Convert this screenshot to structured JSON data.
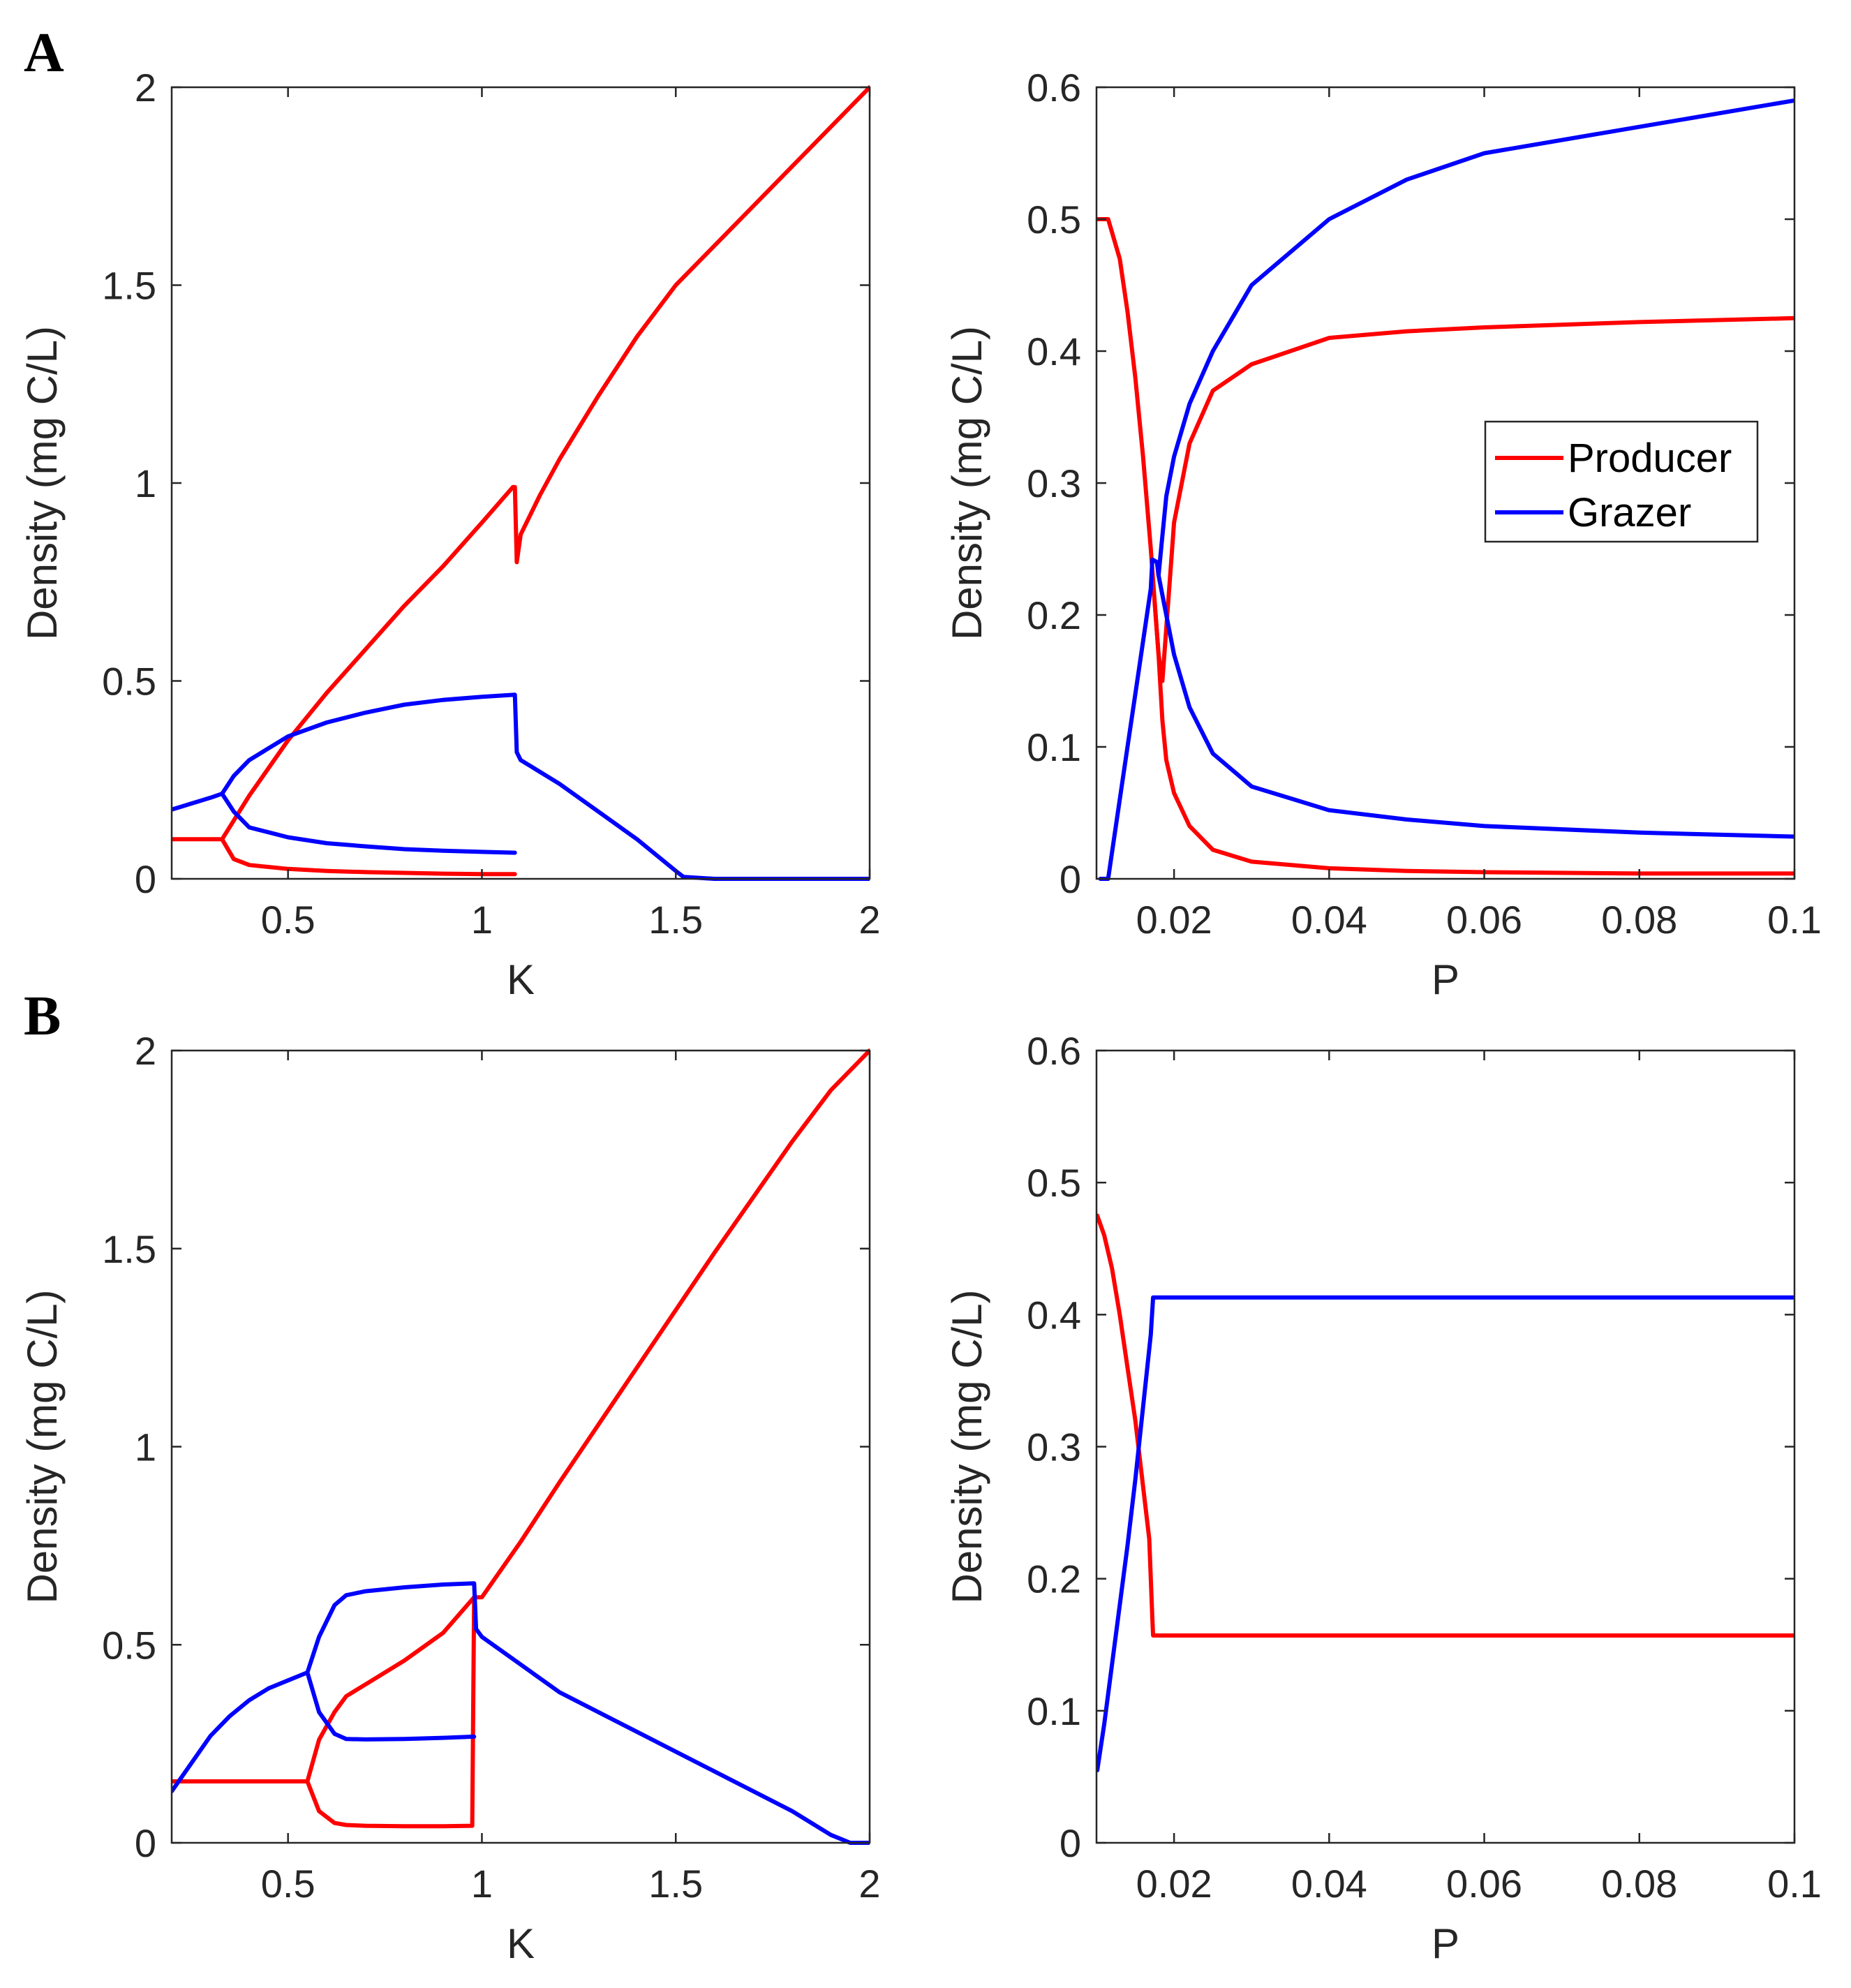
{
  "panel_labels": [
    "A",
    "B"
  ],
  "colors": {
    "producer": "#ff0000",
    "grazer": "#0000ff"
  },
  "legend": {
    "producer": "Producer",
    "grazer": "Grazer"
  },
  "chart_data": [
    {
      "id": "A-left",
      "type": "line",
      "panel": "A",
      "title": "",
      "xlabel": "K",
      "ylabel": "Density (mg C/L)",
      "xlim": [
        0.2,
        2
      ],
      "ylim": [
        0,
        2
      ],
      "xticks": [
        0.5,
        1,
        1.5,
        2
      ],
      "xtick_labels": [
        "0.5",
        "1",
        "1.5",
        "2"
      ],
      "yticks": [
        0,
        0.5,
        1,
        1.5,
        2
      ],
      "ytick_labels": [
        "0",
        "0.5",
        "1",
        "1.5",
        "2"
      ],
      "legend": false,
      "series": [
        {
          "name": "Producer max",
          "color": "producer",
          "x": [
            0.2,
            0.33,
            0.4,
            0.5,
            0.6,
            0.7,
            0.8,
            0.9,
            1.0,
            1.08,
            1.085,
            1.09,
            1.1,
            1.15,
            1.2,
            1.3,
            1.4,
            1.5,
            1.6,
            1.8,
            2.0
          ],
          "y": [
            0.1,
            0.1,
            0.21,
            0.35,
            0.47,
            0.58,
            0.69,
            0.79,
            0.9,
            0.99,
            0.99,
            0.8,
            0.87,
            0.97,
            1.06,
            1.22,
            1.37,
            1.5,
            1.6,
            1.8,
            2.0
          ]
        },
        {
          "name": "Producer min",
          "color": "producer",
          "x": [
            0.33,
            0.36,
            0.4,
            0.5,
            0.6,
            0.7,
            0.8,
            0.9,
            1.0,
            1.085
          ],
          "y": [
            0.1,
            0.05,
            0.035,
            0.025,
            0.02,
            0.017,
            0.015,
            0.013,
            0.012,
            0.012
          ]
        },
        {
          "name": "Grazer max",
          "color": "grazer",
          "x": [
            0.2,
            0.25,
            0.3,
            0.33,
            0.36,
            0.4,
            0.5,
            0.6,
            0.7,
            0.8,
            0.9,
            1.0,
            1.085,
            1.09,
            1.1,
            1.2,
            1.3,
            1.4,
            1.5,
            1.52,
            1.6,
            1.8,
            2.0
          ],
          "y": [
            0.175,
            0.19,
            0.205,
            0.215,
            0.26,
            0.3,
            0.36,
            0.395,
            0.42,
            0.44,
            0.452,
            0.46,
            0.465,
            0.32,
            0.3,
            0.24,
            0.17,
            0.1,
            0.02,
            0.005,
            0.0,
            0.0,
            0.0
          ]
        },
        {
          "name": "Grazer min",
          "color": "grazer",
          "x": [
            0.33,
            0.36,
            0.4,
            0.5,
            0.6,
            0.7,
            0.8,
            0.9,
            1.0,
            1.085
          ],
          "y": [
            0.215,
            0.17,
            0.13,
            0.105,
            0.09,
            0.082,
            0.075,
            0.071,
            0.068,
            0.066
          ]
        }
      ]
    },
    {
      "id": "A-right",
      "type": "line",
      "panel": "A",
      "title": "",
      "xlabel": "P",
      "ylabel": "Density (mg C/L)",
      "xlim": [
        0.01,
        0.1
      ],
      "ylim": [
        0,
        0.6
      ],
      "xticks": [
        0.02,
        0.04,
        0.06,
        0.08,
        0.1
      ],
      "xtick_labels": [
        "0.02",
        "0.04",
        "0.06",
        "0.08",
        "0.1"
      ],
      "yticks": [
        0,
        0.1,
        0.2,
        0.3,
        0.4,
        0.5,
        0.6
      ],
      "ytick_labels": [
        "0",
        "0.1",
        "0.2",
        "0.3",
        "0.4",
        "0.5",
        "0.6"
      ],
      "legend": true,
      "legend_position": "right",
      "series": [
        {
          "name": "Producer max",
          "color": "producer",
          "x": [
            0.01,
            0.0115,
            0.013,
            0.014,
            0.015,
            0.016,
            0.017,
            0.0175,
            0.018,
            0.0185,
            0.019,
            0.02,
            0.022,
            0.025,
            0.03,
            0.04,
            0.05,
            0.06,
            0.08,
            0.1
          ],
          "y": [
            0.5,
            0.5,
            0.47,
            0.43,
            0.38,
            0.32,
            0.25,
            0.21,
            0.17,
            0.15,
            0.19,
            0.27,
            0.33,
            0.37,
            0.39,
            0.41,
            0.415,
            0.418,
            0.422,
            0.425
          ]
        },
        {
          "name": "Producer min",
          "color": "producer",
          "x": [
            0.0175,
            0.018,
            0.0185,
            0.019,
            0.02,
            0.022,
            0.025,
            0.03,
            0.04,
            0.05,
            0.06,
            0.08,
            0.1
          ],
          "y": [
            0.21,
            0.17,
            0.12,
            0.09,
            0.065,
            0.04,
            0.022,
            0.013,
            0.008,
            0.006,
            0.005,
            0.004,
            0.004
          ]
        },
        {
          "name": "Grazer max",
          "color": "grazer",
          "x": [
            0.0105,
            0.0115,
            0.012,
            0.013,
            0.014,
            0.015,
            0.016,
            0.017,
            0.0172,
            0.0178,
            0.018,
            0.0185,
            0.019,
            0.02,
            0.022,
            0.025,
            0.03,
            0.04,
            0.05,
            0.06,
            0.08,
            0.1
          ],
          "y": [
            0.0,
            0.0,
            0.02,
            0.06,
            0.1,
            0.14,
            0.18,
            0.22,
            0.242,
            0.24,
            0.23,
            0.26,
            0.29,
            0.32,
            0.36,
            0.4,
            0.45,
            0.5,
            0.53,
            0.55,
            0.57,
            0.59
          ]
        },
        {
          "name": "Grazer min",
          "color": "grazer",
          "x": [
            0.0172,
            0.0178,
            0.018,
            0.019,
            0.02,
            0.022,
            0.025,
            0.03,
            0.04,
            0.05,
            0.06,
            0.08,
            0.1
          ],
          "y": [
            0.242,
            0.24,
            0.23,
            0.2,
            0.17,
            0.13,
            0.095,
            0.07,
            0.052,
            0.045,
            0.04,
            0.035,
            0.032
          ]
        }
      ]
    },
    {
      "id": "B-left",
      "type": "line",
      "panel": "B",
      "title": "",
      "xlabel": "K",
      "ylabel": "Density (mg C/L)",
      "xlim": [
        0.2,
        2
      ],
      "ylim": [
        0,
        2
      ],
      "xticks": [
        0.5,
        1,
        1.5,
        2
      ],
      "xtick_labels": [
        "0.5",
        "1",
        "1.5",
        "2"
      ],
      "yticks": [
        0,
        0.5,
        1,
        1.5,
        2
      ],
      "ytick_labels": [
        "0",
        "0.5",
        "1",
        "1.5",
        "2"
      ],
      "legend": false,
      "series": [
        {
          "name": "Producer max",
          "color": "producer",
          "x": [
            0.2,
            0.55,
            0.58,
            0.62,
            0.65,
            0.7,
            0.8,
            0.9,
            0.98,
            1.0,
            1.1,
            1.2,
            1.4,
            1.6,
            1.8,
            1.9,
            2.0
          ],
          "y": [
            0.155,
            0.155,
            0.26,
            0.33,
            0.37,
            0.4,
            0.46,
            0.53,
            0.62,
            0.62,
            0.76,
            0.91,
            1.2,
            1.49,
            1.77,
            1.9,
            2.0
          ]
        },
        {
          "name": "Producer min",
          "color": "producer",
          "x": [
            0.55,
            0.58,
            0.62,
            0.65,
            0.7,
            0.8,
            0.9,
            0.975,
            0.98
          ],
          "y": [
            0.155,
            0.08,
            0.05,
            0.045,
            0.043,
            0.042,
            0.042,
            0.043,
            0.62
          ]
        },
        {
          "name": "Grazer max",
          "color": "grazer",
          "x": [
            0.2,
            0.25,
            0.3,
            0.35,
            0.4,
            0.45,
            0.5,
            0.55,
            0.58,
            0.62,
            0.65,
            0.7,
            0.8,
            0.9,
            0.98,
            0.985,
            1.0,
            1.1,
            1.2,
            1.4,
            1.6,
            1.8,
            1.9,
            1.95,
            2.0
          ],
          "y": [
            0.13,
            0.2,
            0.27,
            0.32,
            0.36,
            0.39,
            0.41,
            0.43,
            0.52,
            0.6,
            0.625,
            0.635,
            0.645,
            0.652,
            0.655,
            0.54,
            0.52,
            0.45,
            0.38,
            0.28,
            0.18,
            0.08,
            0.02,
            0.0,
            0.0
          ]
        },
        {
          "name": "Grazer min",
          "color": "grazer",
          "x": [
            0.55,
            0.58,
            0.62,
            0.65,
            0.7,
            0.8,
            0.9,
            0.98
          ],
          "y": [
            0.43,
            0.33,
            0.275,
            0.262,
            0.261,
            0.262,
            0.265,
            0.268
          ]
        }
      ]
    },
    {
      "id": "B-right",
      "type": "line",
      "panel": "B",
      "title": "",
      "xlabel": "P",
      "ylabel": "Density (mg C/L)",
      "xlim": [
        0.01,
        0.1
      ],
      "ylim": [
        0,
        0.6
      ],
      "xticks": [
        0.02,
        0.04,
        0.06,
        0.08,
        0.1
      ],
      "xtick_labels": [
        "0.02",
        "0.04",
        "0.06",
        "0.08",
        "0.1"
      ],
      "yticks": [
        0,
        0.1,
        0.2,
        0.3,
        0.4,
        0.5,
        0.6
      ],
      "ytick_labels": [
        "0",
        "0.1",
        "0.2",
        "0.3",
        "0.4",
        "0.5",
        "0.6"
      ],
      "legend": false,
      "series": [
        {
          "name": "Producer",
          "color": "producer",
          "x": [
            0.0101,
            0.011,
            0.012,
            0.013,
            0.014,
            0.015,
            0.016,
            0.0168,
            0.017,
            0.0172,
            0.0173,
            0.1
          ],
          "y": [
            0.475,
            0.46,
            0.435,
            0.4,
            0.36,
            0.32,
            0.27,
            0.23,
            0.2,
            0.17,
            0.157,
            0.157
          ]
        },
        {
          "name": "Grazer",
          "color": "grazer",
          "x": [
            0.0101,
            0.011,
            0.012,
            0.013,
            0.014,
            0.015,
            0.016,
            0.017,
            0.0173,
            0.1
          ],
          "y": [
            0.055,
            0.09,
            0.135,
            0.18,
            0.225,
            0.275,
            0.33,
            0.385,
            0.413,
            0.413
          ]
        }
      ]
    }
  ]
}
